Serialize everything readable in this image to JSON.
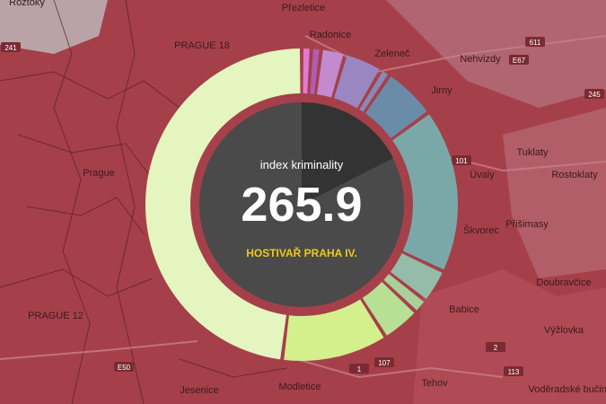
{
  "map": {
    "places": [
      "Roztoky",
      "Přezletice",
      "Radonice",
      "Zeleneč",
      "Nehvizdy",
      "Jirny",
      "Úvaly",
      "Tuklaty",
      "Rostoklaty",
      "Přišimasy",
      "Škvorec",
      "Doubravčice",
      "Babice",
      "Výžlovka",
      "Tehov",
      "Modletice",
      "Jesenice",
      "Prague",
      "PRAGUE 18",
      "PRAGUE 12",
      "Voděradské bučiny"
    ],
    "roads": [
      "241",
      "611",
      "E67",
      "245",
      "101",
      "113",
      "107",
      "E50",
      "2",
      "1"
    ]
  },
  "chart_data": {
    "type": "donut",
    "title": "index kriminality",
    "total": 265.9,
    "subtitle": "HOSTIVAŘ PRAHA IV.",
    "values": [
      1,
      1,
      2.5,
      4,
      1,
      5.5,
      17,
      3.5,
      1.5,
      4,
      11,
      48
    ],
    "colors": [
      "#e07ad0",
      "#b05cb0",
      "#c48ad0",
      "#9a86c0",
      "#8a88b8",
      "#6a8ca8",
      "#7aa8a8",
      "#94bca8",
      "#a8d098",
      "#b8e094",
      "#d4f08c",
      "#e4f5c0"
    ]
  }
}
